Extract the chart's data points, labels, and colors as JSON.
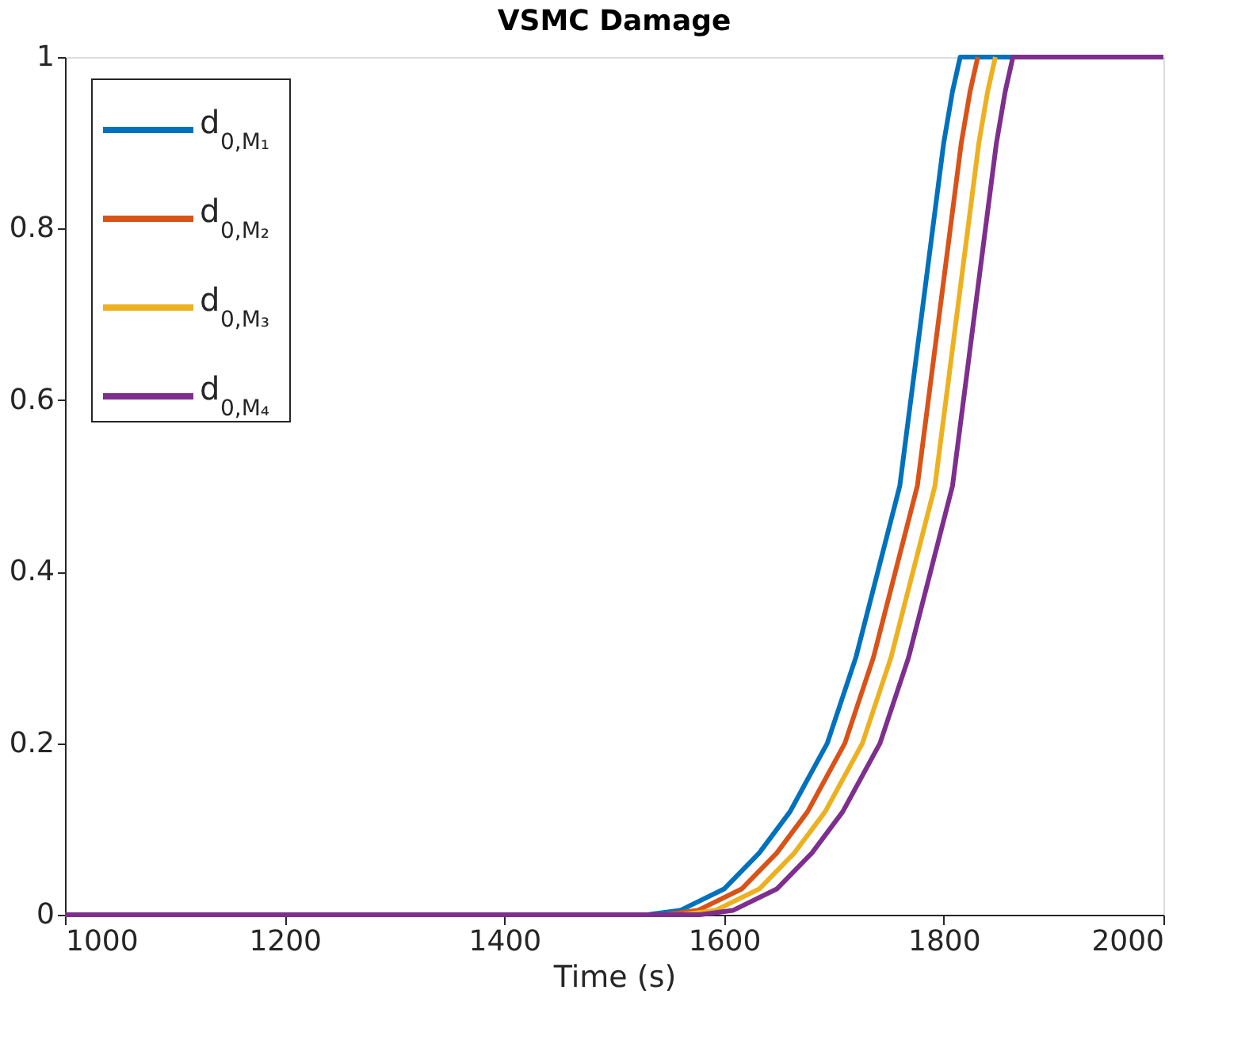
{
  "chart_data": {
    "type": "line",
    "title": "VSMC Damage",
    "xlabel": "Time (s)",
    "xlim": [
      1000,
      2000
    ],
    "xticks": [
      1000,
      1200,
      1400,
      1600,
      1800,
      2000
    ],
    "ylim": [
      0,
      1
    ],
    "yticks": [
      0,
      0.2,
      0.4,
      0.6,
      0.8,
      1
    ],
    "grid": false,
    "legend": "top left",
    "line_style": "solid",
    "marker": "none",
    "series": [
      {
        "name": "d$_{0,M₁}$",
        "color": "#0072bd",
        "x": [
          1000,
          1530,
          1560,
          1600,
          1632,
          1660,
          1694,
          1720,
          1740,
          1760,
          1770,
          1780,
          1790,
          1800,
          1808,
          1815,
          2000
        ],
        "values": [
          0,
          0,
          0.005,
          0.03,
          0.072,
          0.12,
          0.2,
          0.3,
          0.4,
          0.5,
          0.6,
          0.7,
          0.8,
          0.9,
          0.96,
          1,
          1
        ]
      },
      {
        "name": "d$_{0,M₂}$",
        "color": "#d95319",
        "x": [
          1000,
          1546,
          1576,
          1616,
          1648,
          1676,
          1710,
          1736,
          1756,
          1776,
          1786,
          1796,
          1806,
          1816,
          1824,
          1831
        ],
        "values": [
          0,
          0,
          0.005,
          0.03,
          0.072,
          0.12,
          0.2,
          0.3,
          0.4,
          0.5,
          0.6,
          0.7,
          0.8,
          0.9,
          0.96,
          1
        ]
      },
      {
        "name": "d$_{0,M₃}$",
        "color": "#edb120",
        "x": [
          1000,
          1562,
          1592,
          1632,
          1664,
          1692,
          1726,
          1752,
          1772,
          1792,
          1802,
          1812,
          1822,
          1832,
          1840,
          1847
        ],
        "values": [
          0,
          0,
          0.005,
          0.03,
          0.072,
          0.12,
          0.2,
          0.3,
          0.4,
          0.5,
          0.6,
          0.7,
          0.8,
          0.9,
          0.96,
          1
        ]
      },
      {
        "name": "d$_{0,M₄}$",
        "color": "#7e2f8e",
        "x": [
          1000,
          1578,
          1608,
          1648,
          1680,
          1708,
          1742,
          1768,
          1788,
          1808,
          1818,
          1828,
          1838,
          1848,
          1856,
          1863,
          2000
        ],
        "values": [
          0,
          0,
          0.005,
          0.03,
          0.072,
          0.12,
          0.2,
          0.3,
          0.4,
          0.5,
          0.6,
          0.7,
          0.8,
          0.9,
          0.96,
          1,
          1
        ]
      }
    ]
  }
}
